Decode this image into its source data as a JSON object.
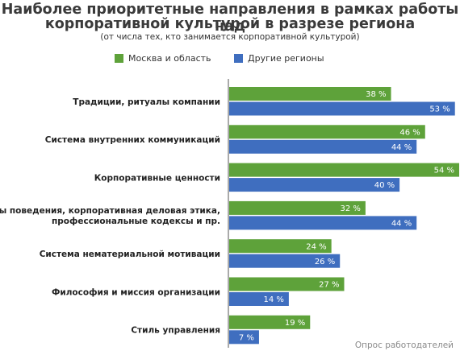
{
  "header": {
    "title_line1": "Наиболее приоритетные направления в рамках работы над",
    "title_line2": "корпоративной культурой в разрезе региона",
    "subtitle": "(от числа тех, кто занимается корпоративной культурой)"
  },
  "source": "Опрос работодателей",
  "colors": {
    "series1": "#5ea23a",
    "series2": "#3f6ebf"
  },
  "chart_data": {
    "type": "bar",
    "orientation": "horizontal",
    "categories": [
      [
        "Традиции, ритуалы компании"
      ],
      [
        "Система внутренних коммуникаций"
      ],
      [
        "Корпоративные ценности"
      ],
      [
        "Нормы поведения, корпоративная деловая этика,",
        "профессиональные кодексы и пр."
      ],
      [
        "Система нематериальной мотивации"
      ],
      [
        "Философия и миссия организации"
      ],
      [
        "Стиль управления"
      ]
    ],
    "series": [
      {
        "name": "Москва и область",
        "values": [
          38,
          46,
          54,
          32,
          24,
          27,
          19
        ]
      },
      {
        "name": "Другие регионы",
        "values": [
          53,
          44,
          40,
          44,
          26,
          14,
          7
        ]
      }
    ],
    "value_suffix": " %",
    "xlim": [
      0,
      54
    ],
    "grid": false,
    "legend_position": "top"
  }
}
